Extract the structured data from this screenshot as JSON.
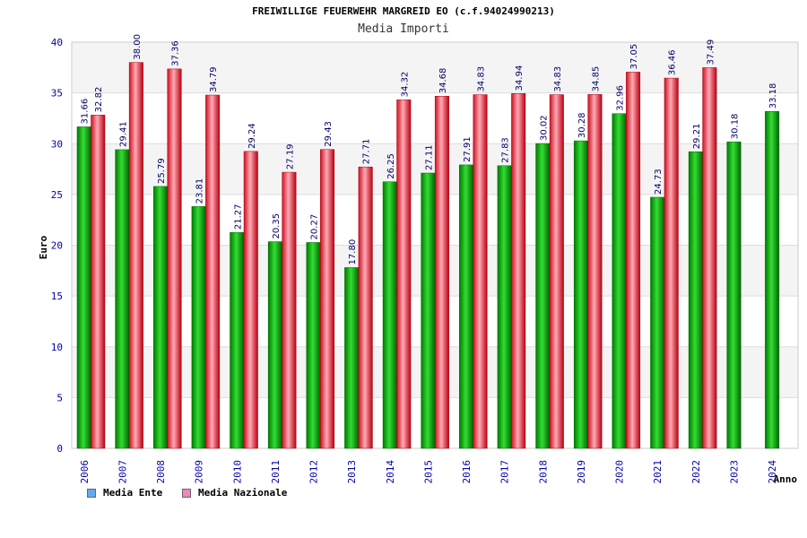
{
  "chart_data": {
    "type": "bar",
    "title": "FREIWILLIGE FEUERWEHR MARGREID EO (c.f.94024990213)",
    "subtitle": "Media Importi",
    "ylabel": "Euro",
    "xlabel": "Anno",
    "ylim": [
      0,
      40
    ],
    "yticks": [
      0,
      5,
      10,
      15,
      20,
      25,
      30,
      35,
      40
    ],
    "grid": true,
    "legend_position": "bottom-left",
    "categories": [
      "2006",
      "2007",
      "2008",
      "2009",
      "2010",
      "2011",
      "2012",
      "2013",
      "2014",
      "2015",
      "2016",
      "2017",
      "2018",
      "2019",
      "2020",
      "2021",
      "2022",
      "2023",
      "2024"
    ],
    "series": [
      {
        "name": "Media Ente",
        "color": "#00a000",
        "legend_color": "#66aaee",
        "values": [
          31.66,
          29.41,
          25.79,
          23.81,
          21.27,
          20.35,
          20.27,
          17.8,
          26.25,
          27.11,
          27.91,
          27.83,
          30.02,
          30.28,
          32.96,
          24.73,
          29.21,
          30.18,
          33.18
        ],
        "labels": [
          "31.66",
          "29.41",
          "25.79",
          "23.81",
          "21.27",
          "20.35",
          "20.27",
          "17.80",
          "26.25",
          "27.11",
          "27.91",
          "27.83",
          "30.02",
          "30.28",
          "32.96",
          "24.73",
          "29.21",
          "30.18",
          "33.18"
        ]
      },
      {
        "name": "Media Nazionale",
        "color": "#ee2233",
        "legend_color": "#ee88bb",
        "values": [
          32.82,
          38.0,
          37.36,
          34.79,
          29.24,
          27.19,
          29.43,
          27.71,
          34.32,
          34.68,
          34.83,
          34.94,
          34.83,
          34.85,
          37.05,
          36.46,
          37.49,
          null,
          null
        ],
        "labels": [
          "32.82",
          "38.00",
          "37.36",
          "34.79",
          "29.24",
          "27.19",
          "29.43",
          "27.71",
          "34.32",
          "34.68",
          "34.83",
          "34.94",
          "34.83",
          "34.85",
          "37.05",
          "36.46",
          "37.49",
          "",
          ""
        ]
      }
    ]
  },
  "colors": {
    "axis_text": "#0000aa",
    "band_light": "#f4f4f4",
    "band_white": "#ffffff",
    "gridline": "#dddddd"
  }
}
